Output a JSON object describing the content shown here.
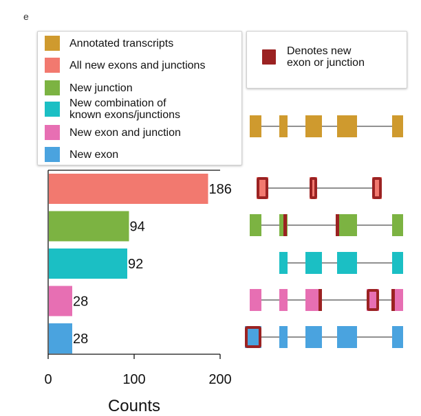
{
  "corner_mark": "e",
  "legend": {
    "items": [
      {
        "label": "Annotated transcripts",
        "color": "#cf9a2e"
      },
      {
        "label": "All new exons and junctions",
        "color": "#f2796f"
      },
      {
        "label": "New junction",
        "color": "#7cb342"
      },
      {
        "label": "New combination of\nknown exons/junctions",
        "color": "#1bbfc4"
      },
      {
        "label": "New exon and junction",
        "color": "#e76fb3"
      },
      {
        "label": "New exon",
        "color": "#4aa3df"
      }
    ],
    "new_marker": {
      "label": "Denotes new\nexon or junction",
      "color": "#9b2222"
    }
  },
  "chart_data": {
    "type": "bar",
    "orientation": "horizontal",
    "categories": [
      "All new exons and junctions",
      "New junction",
      "New combination of known exons/junctions",
      "New exon and junction",
      "New exon"
    ],
    "values": [
      186,
      94,
      92,
      28,
      28
    ],
    "value_labels": [
      "186",
      "94",
      "92",
      "28",
      "28"
    ],
    "colors": [
      "#f2796f",
      "#7cb342",
      "#1bbfc4",
      "#e76fb3",
      "#4aa3df"
    ],
    "xlabel": "Counts",
    "xlim": [
      0,
      200
    ],
    "xticks": [
      0,
      100,
      200
    ],
    "xtick_labels": [
      "0",
      "100",
      "200"
    ],
    "grid": false
  }
}
